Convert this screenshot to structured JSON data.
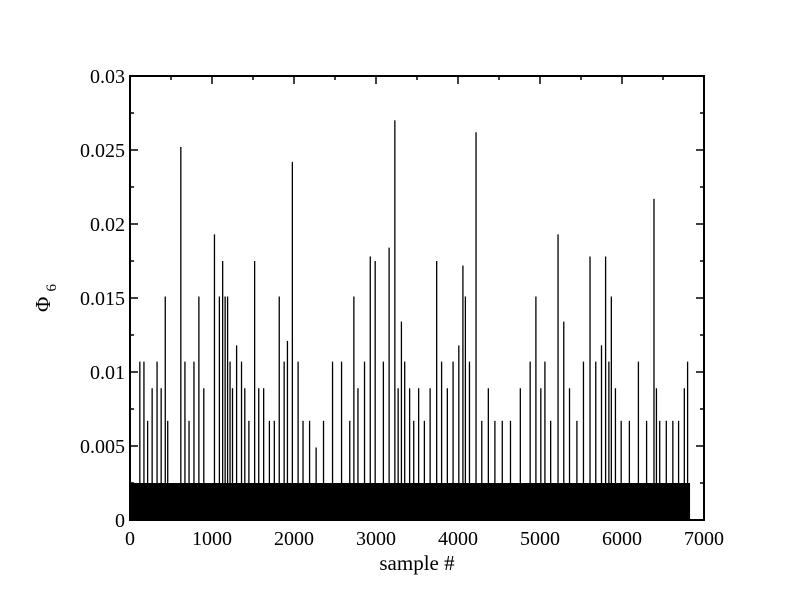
{
  "chart_data": {
    "type": "bar",
    "title": "",
    "xlabel": "sample #",
    "ylabel_main": "Φ",
    "ylabel_sub": "6",
    "xlim": [
      0,
      7000
    ],
    "ylim": [
      0,
      0.03
    ],
    "grid": false,
    "legend": "none",
    "colors": {
      "bars": "#000000",
      "axes": "#000000",
      "background": "#ffffff"
    },
    "x_ticks": [
      0,
      1000,
      2000,
      3000,
      4000,
      5000,
      6000,
      7000
    ],
    "x_tick_labels": [
      "0",
      "1000",
      "2000",
      "3000",
      "4000",
      "5000",
      "6000",
      "7000"
    ],
    "x_minor_step": 500,
    "y_ticks": [
      0,
      0.005,
      0.01,
      0.015,
      0.02,
      0.025,
      0.03
    ],
    "y_tick_labels": [
      "0",
      "0.005",
      "0.01",
      "0.015",
      "0.02",
      "0.025",
      "0.03"
    ],
    "y_minor_step": 0.0025,
    "baseline_band": {
      "x_start": 0,
      "x_end": 6830,
      "value": 0.0025
    },
    "series": [
      {
        "x": [
          120,
          170,
          215,
          270,
          330,
          380,
          430,
          460,
          620,
          670,
          720,
          780,
          840,
          900,
          1030,
          1090,
          1130,
          1160,
          1190,
          1220,
          1250,
          1300,
          1360,
          1400,
          1450,
          1520,
          1570,
          1630,
          1700,
          1760,
          1820,
          1880,
          1920,
          1980,
          2050,
          2110,
          2190,
          2270,
          2360,
          2470,
          2580,
          2680,
          2730,
          2780,
          2860,
          2930,
          2990,
          3090,
          3160,
          3230,
          3270,
          3310,
          3350,
          3410,
          3460,
          3520,
          3590,
          3660,
          3740,
          3800,
          3870,
          3940,
          4010,
          4060,
          4090,
          4140,
          4220,
          4290,
          4370,
          4450,
          4540,
          4640,
          4760,
          4880,
          4950,
          5010,
          5060,
          5130,
          5220,
          5290,
          5360,
          5450,
          5530,
          5610,
          5680,
          5750,
          5800,
          5840,
          5870,
          5920,
          5990,
          6090,
          6200,
          6300,
          6390,
          6420,
          6460,
          6540,
          6620,
          6690,
          6760,
          6800
        ],
        "values": [
          0.0107,
          0.0107,
          0.0067,
          0.0089,
          0.0107,
          0.0089,
          0.0151,
          0.0067,
          0.0252,
          0.0107,
          0.0067,
          0.0107,
          0.0151,
          0.0089,
          0.0193,
          0.0151,
          0.0175,
          0.0151,
          0.0151,
          0.0107,
          0.0089,
          0.0118,
          0.0107,
          0.0089,
          0.0067,
          0.0175,
          0.0089,
          0.0089,
          0.0067,
          0.0067,
          0.0151,
          0.0107,
          0.0121,
          0.0242,
          0.0107,
          0.0067,
          0.0067,
          0.0049,
          0.0067,
          0.0107,
          0.0107,
          0.0067,
          0.0151,
          0.0089,
          0.0107,
          0.0178,
          0.0175,
          0.0107,
          0.0184,
          0.027,
          0.0089,
          0.0134,
          0.0107,
          0.0089,
          0.0067,
          0.0089,
          0.0067,
          0.0089,
          0.0175,
          0.0107,
          0.0089,
          0.0107,
          0.0118,
          0.0172,
          0.0151,
          0.0107,
          0.0262,
          0.0067,
          0.0089,
          0.0067,
          0.0067,
          0.0067,
          0.0089,
          0.0107,
          0.0151,
          0.0089,
          0.0107,
          0.0067,
          0.0193,
          0.0134,
          0.0089,
          0.0067,
          0.0107,
          0.0178,
          0.0107,
          0.0118,
          0.0178,
          0.0107,
          0.0151,
          0.0089,
          0.0067,
          0.0067,
          0.0107,
          0.0067,
          0.0217,
          0.0089,
          0.0067,
          0.0067,
          0.0067,
          0.0067,
          0.0089,
          0.0107
        ]
      }
    ]
  }
}
